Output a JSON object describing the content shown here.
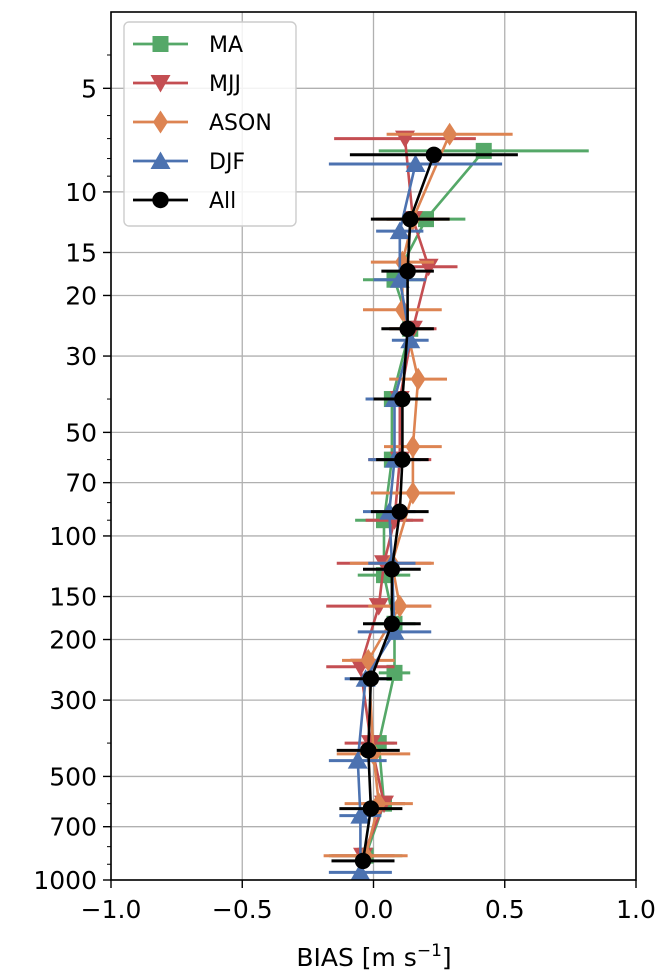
{
  "chart_data": {
    "type": "line",
    "title": "",
    "xlabel": "BIAS [m s",
    "xlabel_superscript": "−1",
    "xlabel_suffix": "]",
    "ylabel": "",
    "xlim": [
      -1.0,
      1.0
    ],
    "ylim": [
      1000,
      3
    ],
    "yscale": "log",
    "grid": true,
    "legend_position": "upper-left",
    "x_ticks": [
      -1.0,
      -0.5,
      0.0,
      0.5,
      1.0
    ],
    "x_tick_labels": [
      "−1.0",
      "−0.5",
      "0.0",
      "0.5",
      "1.0"
    ],
    "y_ticks": [
      5,
      10,
      15,
      20,
      30,
      50,
      70,
      100,
      150,
      200,
      300,
      500,
      700,
      1000
    ],
    "y_tick_labels": [
      "5",
      "10",
      "15",
      "20",
      "30",
      "50",
      "70",
      "100",
      "150",
      "200",
      "300",
      "500",
      "700",
      "1000"
    ],
    "series": [
      {
        "name": "MA",
        "color": "#55a868",
        "marker": "square",
        "points": [
          {
            "p": 7.6,
            "x": 0.42,
            "err": 0.4
          },
          {
            "p": 12,
            "x": 0.2,
            "err": 0.15
          },
          {
            "p": 18,
            "x": 0.08,
            "err": 0.12
          },
          {
            "p": 25,
            "x": 0.14,
            "err": 0.08
          },
          {
            "p": 40,
            "x": 0.07,
            "err": 0.1
          },
          {
            "p": 60,
            "x": 0.07,
            "err": 0.08
          },
          {
            "p": 90,
            "x": 0.04,
            "err": 0.11
          },
          {
            "p": 130,
            "x": 0.04,
            "err": 0.1
          },
          {
            "p": 180,
            "x": 0.08,
            "err": 0.08
          },
          {
            "p": 250,
            "x": 0.08,
            "err": 0.06
          },
          {
            "p": 400,
            "x": 0.02,
            "err": 0.06
          },
          {
            "p": 600,
            "x": 0.04,
            "err": 0.08
          },
          {
            "p": 850,
            "x": -0.03,
            "err": 0.14
          }
        ]
      },
      {
        "name": "MJJ",
        "color": "#c44e52",
        "marker": "triangle-down",
        "points": [
          {
            "p": 7,
            "x": 0.12,
            "err": 0.27
          },
          {
            "p": 12,
            "x": 0.15,
            "err": 0.1
          },
          {
            "p": 16.5,
            "x": 0.21,
            "err": 0.11
          },
          {
            "p": 25,
            "x": 0.15,
            "err": 0.09
          },
          {
            "p": 40,
            "x": 0.1,
            "err": 0.1
          },
          {
            "p": 60,
            "x": 0.1,
            "err": 0.12
          },
          {
            "p": 90,
            "x": 0.08,
            "err": 0.11
          },
          {
            "p": 120,
            "x": 0.04,
            "err": 0.18
          },
          {
            "p": 160,
            "x": 0.02,
            "err": 0.2
          },
          {
            "p": 240,
            "x": -0.05,
            "err": 0.13
          },
          {
            "p": 400,
            "x": -0.01,
            "err": 0.1
          },
          {
            "p": 600,
            "x": 0.04,
            "err": 0.08
          },
          {
            "p": 850,
            "x": -0.04,
            "err": 0.12
          }
        ]
      },
      {
        "name": "ASON",
        "color": "#dd8452",
        "marker": "diamond",
        "points": [
          {
            "p": 6.8,
            "x": 0.29,
            "err": 0.24
          },
          {
            "p": 12,
            "x": 0.15,
            "err": 0.14
          },
          {
            "p": 16,
            "x": 0.11,
            "err": 0.12
          },
          {
            "p": 22,
            "x": 0.11,
            "err": 0.15
          },
          {
            "p": 35,
            "x": 0.17,
            "err": 0.11
          },
          {
            "p": 55,
            "x": 0.15,
            "err": 0.11
          },
          {
            "p": 75,
            "x": 0.15,
            "err": 0.16
          },
          {
            "p": 120,
            "x": 0.07,
            "err": 0.16
          },
          {
            "p": 160,
            "x": 0.1,
            "err": 0.12
          },
          {
            "p": 230,
            "x": -0.02,
            "err": 0.1
          },
          {
            "p": 430,
            "x": 0.0,
            "err": 0.14
          },
          {
            "p": 600,
            "x": 0.02,
            "err": 0.13
          },
          {
            "p": 850,
            "x": -0.03,
            "err": 0.16
          }
        ]
      },
      {
        "name": "DJF",
        "color": "#4c72b0",
        "marker": "triangle-up",
        "points": [
          {
            "p": 8.3,
            "x": 0.16,
            "err": 0.33
          },
          {
            "p": 13,
            "x": 0.1,
            "err": 0.09
          },
          {
            "p": 18,
            "x": 0.1,
            "err": 0.1
          },
          {
            "p": 27,
            "x": 0.14,
            "err": 0.07
          },
          {
            "p": 40,
            "x": 0.08,
            "err": 0.11
          },
          {
            "p": 60,
            "x": 0.08,
            "err": 0.1
          },
          {
            "p": 85,
            "x": 0.06,
            "err": 0.1
          },
          {
            "p": 120,
            "x": 0.07,
            "err": 0.09
          },
          {
            "p": 190,
            "x": 0.08,
            "err": 0.14
          },
          {
            "p": 260,
            "x": -0.03,
            "err": 0.08
          },
          {
            "p": 450,
            "x": -0.06,
            "err": 0.11
          },
          {
            "p": 650,
            "x": -0.05,
            "err": 0.08
          },
          {
            "p": 950,
            "x": -0.05,
            "err": 0.12
          }
        ]
      },
      {
        "name": "All",
        "color": "#000000",
        "marker": "circle",
        "points": [
          {
            "p": 7.8,
            "x": 0.23,
            "err": 0.32
          },
          {
            "p": 12,
            "x": 0.14,
            "err": 0.15
          },
          {
            "p": 17,
            "x": 0.13,
            "err": 0.1
          },
          {
            "p": 25,
            "x": 0.13,
            "err": 0.1
          },
          {
            "p": 40,
            "x": 0.11,
            "err": 0.11
          },
          {
            "p": 60,
            "x": 0.11,
            "err": 0.1
          },
          {
            "p": 85,
            "x": 0.1,
            "err": 0.11
          },
          {
            "p": 125,
            "x": 0.07,
            "err": 0.11
          },
          {
            "p": 180,
            "x": 0.07,
            "err": 0.11
          },
          {
            "p": 260,
            "x": -0.01,
            "err": 0.08
          },
          {
            "p": 420,
            "x": -0.02,
            "err": 0.12
          },
          {
            "p": 620,
            "x": -0.01,
            "err": 0.12
          },
          {
            "p": 880,
            "x": -0.04,
            "err": 0.12
          }
        ]
      }
    ]
  }
}
